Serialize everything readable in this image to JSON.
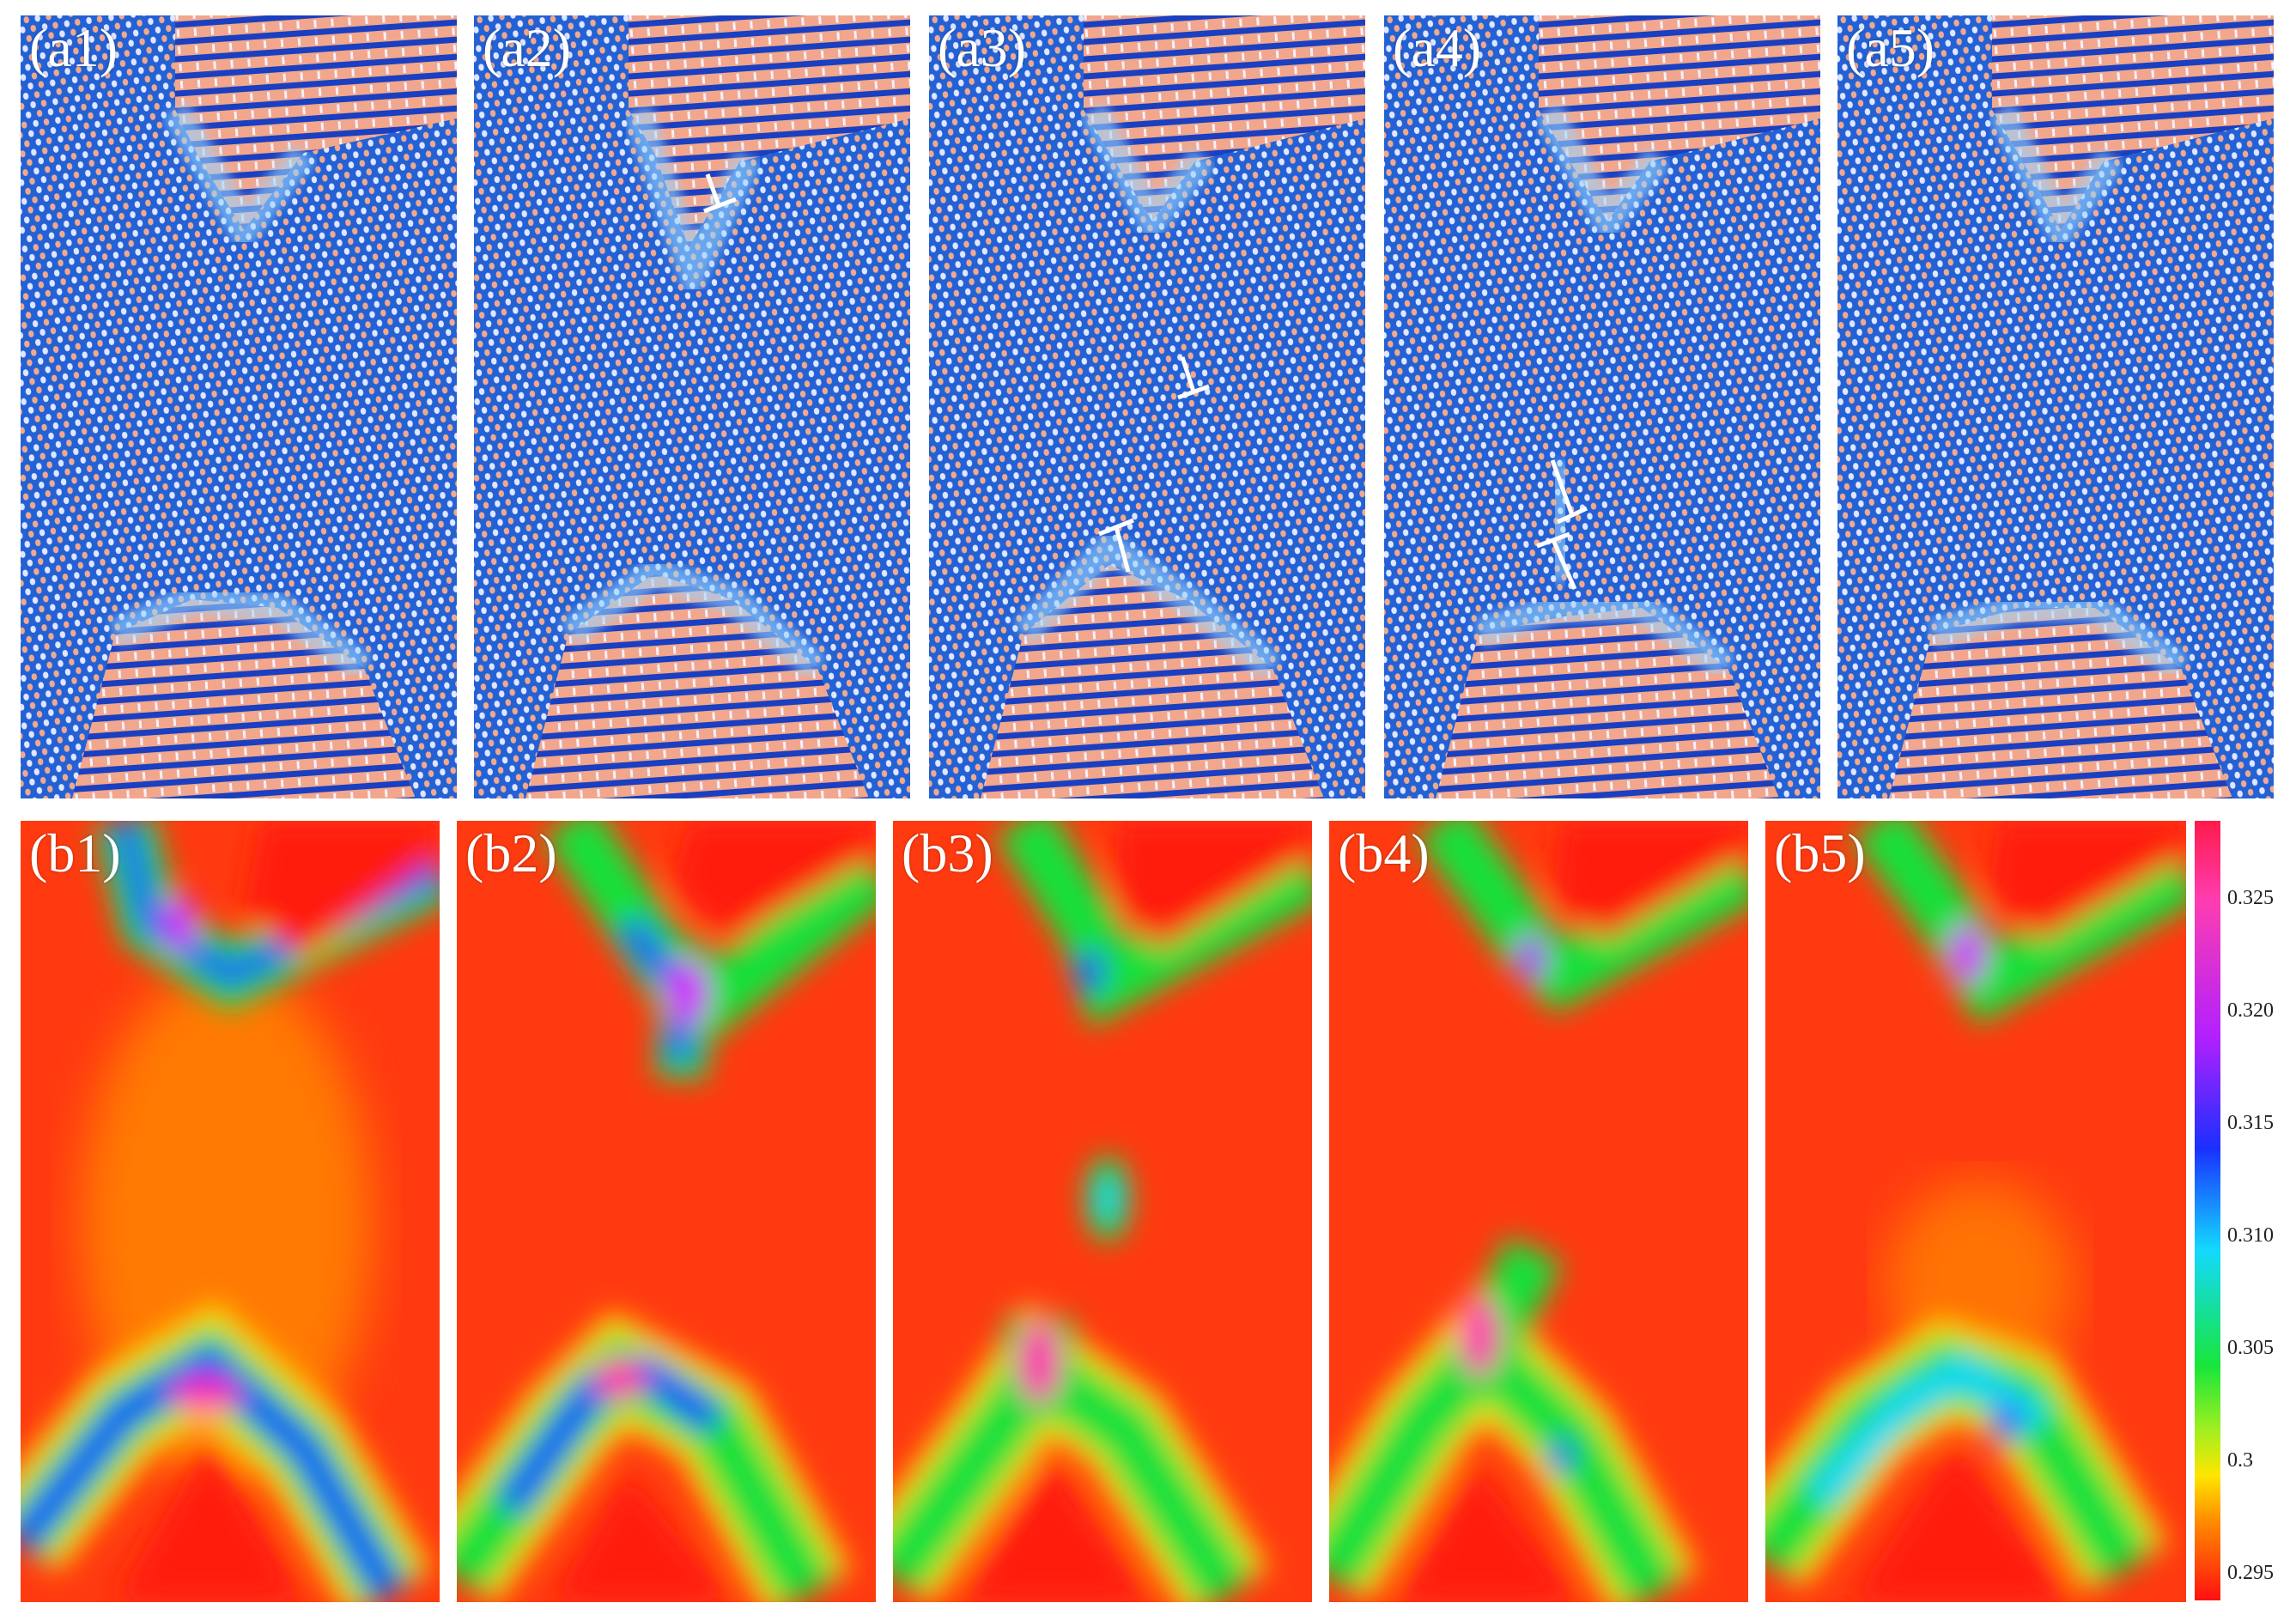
{
  "top_row": {
    "panels": [
      {
        "label": "(a1)"
      },
      {
        "label": "(a2)"
      },
      {
        "label": "(a3)"
      },
      {
        "label": "(a4)"
      },
      {
        "label": "(a5)"
      }
    ],
    "colors": {
      "background": "#1f63d6",
      "lattice_dot": "#e9a28a",
      "stripe": "#1a3fc0",
      "glow": "#8fd0ff"
    }
  },
  "bottom_row": {
    "panels": [
      {
        "label": "(b1)"
      },
      {
        "label": "(b2)"
      },
      {
        "label": "(b3)"
      },
      {
        "label": "(b4)"
      },
      {
        "label": "(b5)"
      }
    ]
  },
  "colorbar": {
    "ticks": [
      "0.325",
      "0.320",
      "0.315",
      "0.310",
      "0.305",
      "0.3",
      "0.295"
    ],
    "min": 0.295,
    "max": 0.325
  }
}
